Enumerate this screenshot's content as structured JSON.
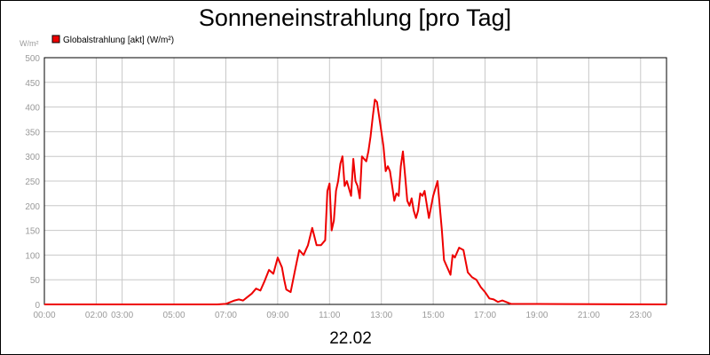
{
  "title": "Sonneneinstrahlung [pro Tag]",
  "date_label": "22.02",
  "chart_data": {
    "type": "line",
    "ylabel": "W/m²",
    "xlabel": "",
    "xlim": [
      "00:00",
      "24:00"
    ],
    "ylim": [
      0,
      500
    ],
    "grid": true,
    "legend": "top-left",
    "y_ticks": [
      0,
      50,
      100,
      150,
      200,
      250,
      300,
      350,
      400,
      450,
      500
    ],
    "x_ticks": [
      "00:00",
      "02:00",
      "03:00",
      "05:00",
      "07:00",
      "09:00",
      "11:00",
      "13:00",
      "15:00",
      "17:00",
      "19:00",
      "21:00",
      "23:00"
    ],
    "series": [
      {
        "name": "Globalstrahlung [akt] (W/m²)",
        "color": "#ee0000",
        "x": [
          "00:00",
          "06:40",
          "07:00",
          "07:20",
          "07:30",
          "07:40",
          "07:50",
          "08:00",
          "08:10",
          "08:20",
          "08:30",
          "08:40",
          "08:50",
          "09:00",
          "09:10",
          "09:15",
          "09:20",
          "09:30",
          "09:40",
          "09:45",
          "09:50",
          "10:00",
          "10:05",
          "10:10",
          "10:20",
          "10:30",
          "10:40",
          "10:50",
          "10:55",
          "11:00",
          "11:05",
          "11:10",
          "11:15",
          "11:20",
          "11:25",
          "11:30",
          "11:35",
          "11:40",
          "11:50",
          "11:55",
          "12:00",
          "12:05",
          "12:10",
          "12:15",
          "12:20",
          "12:25",
          "12:30",
          "12:35",
          "12:40",
          "12:45",
          "12:50",
          "13:00",
          "13:05",
          "13:10",
          "13:15",
          "13:20",
          "13:25",
          "13:30",
          "13:35",
          "13:40",
          "13:45",
          "13:50",
          "13:55",
          "14:00",
          "14:05",
          "14:10",
          "14:15",
          "14:20",
          "14:25",
          "14:30",
          "14:35",
          "14:40",
          "14:50",
          "15:00",
          "15:10",
          "15:20",
          "15:25",
          "15:30",
          "15:35",
          "15:40",
          "15:45",
          "15:50",
          "16:00",
          "16:10",
          "16:20",
          "16:30",
          "16:40",
          "16:50",
          "17:00",
          "17:10",
          "17:20",
          "17:30",
          "17:40",
          "18:00",
          "24:00"
        ],
        "values": [
          0,
          0,
          1,
          8,
          10,
          8,
          15,
          22,
          32,
          28,
          48,
          70,
          62,
          95,
          75,
          50,
          30,
          25,
          68,
          90,
          110,
          100,
          110,
          120,
          155,
          120,
          120,
          130,
          230,
          245,
          150,
          170,
          230,
          250,
          285,
          300,
          240,
          250,
          220,
          295,
          250,
          240,
          215,
          300,
          295,
          290,
          310,
          340,
          380,
          415,
          410,
          350,
          320,
          270,
          280,
          270,
          240,
          210,
          225,
          220,
          280,
          310,
          260,
          210,
          200,
          215,
          190,
          175,
          190,
          225,
          220,
          230,
          175,
          220,
          250,
          150,
          90,
          80,
          70,
          60,
          100,
          95,
          115,
          110,
          65,
          55,
          50,
          35,
          25,
          12,
          10,
          5,
          8,
          1,
          0
        ]
      }
    ]
  }
}
